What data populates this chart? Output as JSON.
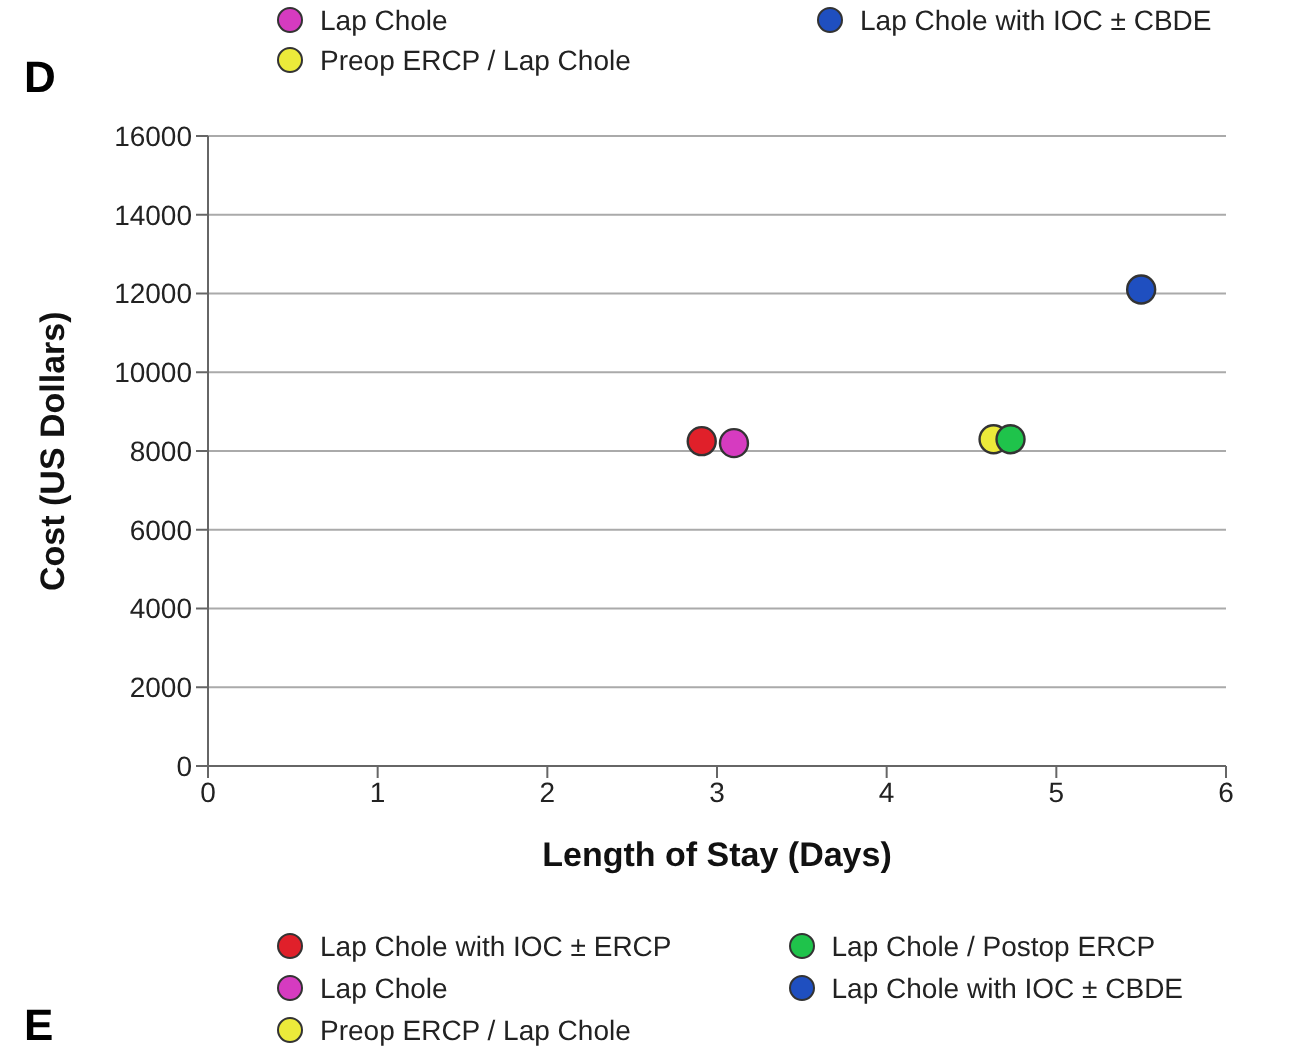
{
  "chart_data": {
    "type": "scatter",
    "xlabel": "Length of Stay (Days)",
    "ylabel": "Cost (US Dollars)",
    "xlim": [
      0,
      6
    ],
    "xticks": [
      0,
      1,
      2,
      3,
      4,
      5,
      6
    ],
    "ylim": [
      0,
      16000
    ],
    "yticks": [
      0,
      2000,
      4000,
      6000,
      8000,
      10000,
      12000,
      14000,
      16000
    ],
    "grid": "y",
    "legend": "bottom",
    "marker": "circle",
    "annotations": [
      "Lap Chole",
      "Lap Chole with IOC ± CBDE",
      "Preop ERCP / Lap Chole",
      "D",
      "E"
    ],
    "series": [
      {
        "name": "Lap Chole with IOC ± ERCP",
        "color": "#e0202a",
        "x": [
          2.91
        ],
        "values": [
          8250
        ]
      },
      {
        "name": "Lap Chole",
        "color": "#d63bc0",
        "x": [
          3.1
        ],
        "values": [
          8200
        ]
      },
      {
        "name": "Preop ERCP / Lap Chole",
        "color": "#ecea3a",
        "x": [
          4.63
        ],
        "values": [
          8300
        ]
      },
      {
        "name": "Lap Chole / Postop ERCP",
        "color": "#1fc34b",
        "x": [
          4.73
        ],
        "values": [
          8300
        ]
      },
      {
        "name": "Lap Chole with IOC ± CBDE",
        "color": "#1f4fc0",
        "x": [
          5.5
        ],
        "values": [
          12100
        ]
      }
    ]
  }
}
